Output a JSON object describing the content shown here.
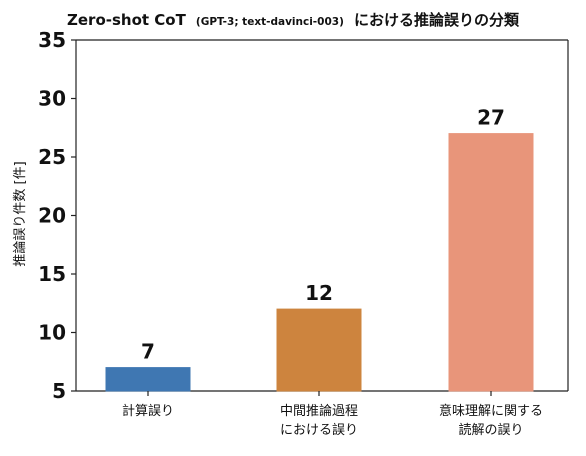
{
  "chart_data": {
    "type": "bar",
    "title": {
      "prefix": "Zero-shot CoT",
      "detail": "(GPT-3; text-davinci-003)",
      "suffix": "における推論誤りの分類"
    },
    "categories": [
      [
        "計算誤り"
      ],
      [
        "中間推論過程",
        "における誤り"
      ],
      [
        "意味理解に関する",
        "読解の誤り"
      ]
    ],
    "values": [
      7,
      12,
      27
    ],
    "colors": [
      "#3f77b2",
      "#cd843e",
      "#e8957a"
    ],
    "ylabel": "推論誤り件数 [件]",
    "xlabel": "",
    "ylim": [
      5,
      35
    ],
    "yticks": [
      5,
      10,
      15,
      20,
      25,
      30,
      35
    ],
    "grid": false,
    "legend": false
  }
}
